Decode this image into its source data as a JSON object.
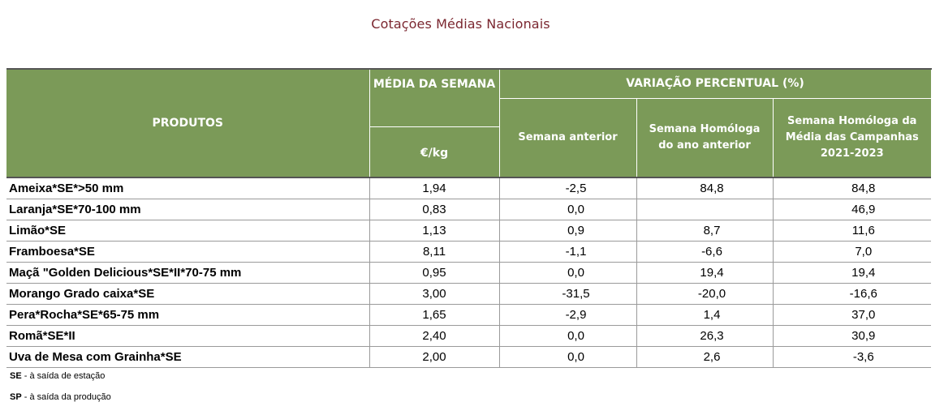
{
  "title": "Cotações Médias Nacionais",
  "table": {
    "headers": {
      "products": "PRODUTOS",
      "week_average": "MÉDIA DA SEMANA",
      "unit": "€/kg",
      "percent_variation": "VARIAÇÃO PERCENTUAL (%)",
      "previous_week": "Semana anterior",
      "homologous_week": "Semana Homóloga do ano anterior",
      "campaigns_week": "Semana Homóloga da Média das Campanhas 2021-2023"
    },
    "rows": [
      {
        "product": "Ameixa*SE*>50 mm",
        "avg": "1,94",
        "prev": "-2,5",
        "hom": "84,8",
        "camp": "84,8"
      },
      {
        "product": "Laranja*SE*70-100 mm",
        "avg": "0,83",
        "prev": "0,0",
        "hom": "",
        "camp": "46,9"
      },
      {
        "product": "Limão*SE",
        "avg": "1,13",
        "prev": "0,9",
        "hom": "8,7",
        "camp": "11,6"
      },
      {
        "product": "Framboesa*SE",
        "avg": "8,11",
        "prev": "-1,1",
        "hom": "-6,6",
        "camp": "7,0"
      },
      {
        "product": "Maçã \"Golden Delicious*SE*II*70-75 mm",
        "avg": "0,95",
        "prev": "0,0",
        "hom": "19,4",
        "camp": "19,4"
      },
      {
        "product": "Morango Grado caixa*SE",
        "avg": "3,00",
        "prev": "-31,5",
        "hom": "-20,0",
        "camp": "-16,6"
      },
      {
        "product": "Pera*Rocha*SE*65-75 mm",
        "avg": "1,65",
        "prev": "-2,9",
        "hom": "1,4",
        "camp": "37,0"
      },
      {
        "product": "Romã*SE*II",
        "avg": "2,40",
        "prev": "0,0",
        "hom": "26,3",
        "camp": "30,9"
      },
      {
        "product": "Uva de Mesa com Grainha*SE",
        "avg": "2,00",
        "prev": "0,0",
        "hom": "2,6",
        "camp": "-3,6"
      }
    ]
  },
  "notes": [
    {
      "code": "SE",
      "text": " - à saída de estação"
    },
    {
      "code": "SP",
      "text": " - à saída da produção"
    }
  ],
  "colors": {
    "title": "#7b2730",
    "header_background": "#7b9a58",
    "header_text": "#ffffff"
  }
}
